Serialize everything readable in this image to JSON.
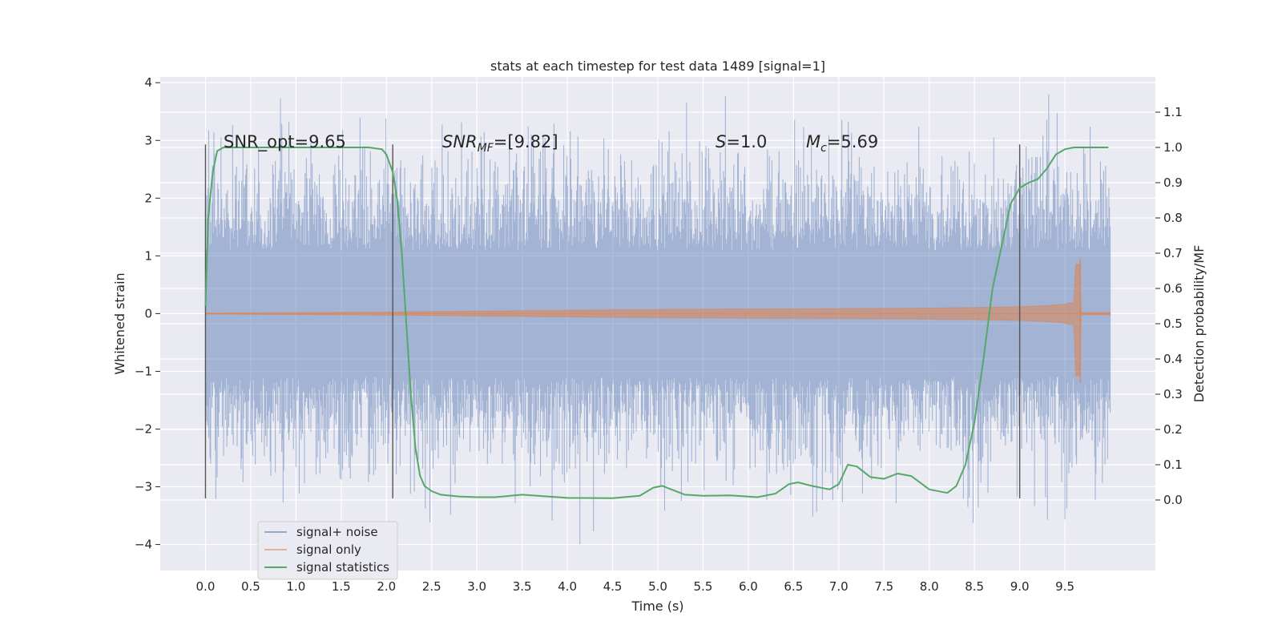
{
  "chart_data": {
    "type": "line",
    "title": "stats at each timestep for test data 1489 [signal=1]",
    "xlabel": "Time (s)",
    "ylabel": "Whitened strain",
    "ylabel_right": "Detection probability/MF",
    "xlim": [
      -0.5,
      10.5
    ],
    "ylim": [
      -4.45,
      4.1
    ],
    "ylim_right": [
      -0.2,
      1.2
    ],
    "x_ticks": [
      "0.0",
      "0.5",
      "1.0",
      "1.5",
      "2.0",
      "2.5",
      "3.0",
      "3.5",
      "4.0",
      "4.5",
      "5.0",
      "5.5",
      "6.0",
      "6.5",
      "7.0",
      "7.5",
      "8.0",
      "8.5",
      "9.0",
      "9.5"
    ],
    "y_ticks": [
      "4",
      "3",
      "2",
      "1",
      "0",
      "−1",
      "−2",
      "−3",
      "−4"
    ],
    "y_ticks_right": [
      "1.1",
      "1.0",
      "0.9",
      "0.8",
      "0.7",
      "0.6",
      "0.5",
      "0.4",
      "0.3",
      "0.2",
      "0.1",
      "0.0"
    ],
    "grid": true,
    "legend_position": "lower-left",
    "annotations": {
      "snr_opt": "SNR_opt=9.65",
      "snr_mf_base": "SNR",
      "snr_mf_sub": "MF",
      "snr_mf_value": "=[9.82]",
      "s_label": "S",
      "s_value": "=1.0",
      "mc_base": "M",
      "mc_sub": "c",
      "mc_value": "=5.69"
    },
    "vertical_markers": [
      0.0,
      2.07,
      9.0
    ],
    "series": [
      {
        "name": "signal+ noise",
        "color": "#4c72b0",
        "description_stats": {
          "t_start": 0.0,
          "t_end": 10.0,
          "core_amplitude": 1.1,
          "max": 3.8,
          "min": -4.05
        }
      },
      {
        "name": "signal only",
        "color": "#dd8452",
        "chirp": {
          "t_start": 0.0,
          "t_merge": 9.67,
          "t_end": 10.0,
          "peak_amplitude": 0.95,
          "min_amplitude": -1.2
        }
      },
      {
        "name": "signal statistics",
        "color": "#55a868",
        "x": [
          0.0,
          0.03,
          0.08,
          0.13,
          0.2,
          0.3,
          0.5,
          1.0,
          1.5,
          1.8,
          1.95,
          2.0,
          2.07,
          2.12,
          2.17,
          2.22,
          2.27,
          2.32,
          2.37,
          2.42,
          2.5,
          2.6,
          2.8,
          3.0,
          3.2,
          3.5,
          4.0,
          4.5,
          4.8,
          4.95,
          5.05,
          5.15,
          5.3,
          5.5,
          5.8,
          6.1,
          6.3,
          6.45,
          6.55,
          6.7,
          6.9,
          7.0,
          7.1,
          7.2,
          7.35,
          7.5,
          7.65,
          7.8,
          8.0,
          8.2,
          8.3,
          8.4,
          8.5,
          8.6,
          8.7,
          8.8,
          8.9,
          9.0,
          9.1,
          9.2,
          9.3,
          9.4,
          9.5,
          9.6,
          9.7,
          9.98
        ],
        "values": [
          0.55,
          0.8,
          0.93,
          0.99,
          1.0,
          1.0,
          1.0,
          1.0,
          1.0,
          1.0,
          0.995,
          0.98,
          0.93,
          0.85,
          0.7,
          0.5,
          0.3,
          0.15,
          0.07,
          0.04,
          0.025,
          0.015,
          0.01,
          0.008,
          0.008,
          0.015,
          0.006,
          0.005,
          0.012,
          0.035,
          0.04,
          0.03,
          0.015,
          0.012,
          0.013,
          0.008,
          0.018,
          0.045,
          0.05,
          0.04,
          0.03,
          0.045,
          0.1,
          0.095,
          0.065,
          0.06,
          0.075,
          0.068,
          0.03,
          0.02,
          0.04,
          0.1,
          0.22,
          0.4,
          0.6,
          0.72,
          0.84,
          0.885,
          0.9,
          0.91,
          0.94,
          0.98,
          0.995,
          1.0,
          1.0,
          1.0
        ]
      }
    ]
  }
}
